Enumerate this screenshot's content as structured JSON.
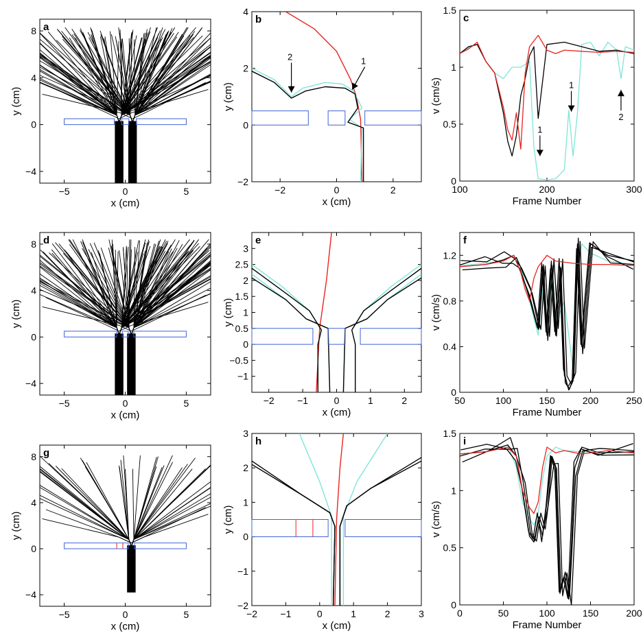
{
  "figure": {
    "panels": [
      {
        "id": "a",
        "kind": "trajectories",
        "xlabel": "x (cm)",
        "ylabel": "y (cm)",
        "xlim": [
          -7,
          7
        ],
        "ylim": [
          -5,
          9
        ],
        "xticks": [
          -5,
          0,
          5
        ],
        "yticks": [
          -4,
          0,
          4,
          8
        ],
        "barriers": [
          [
            -5,
            -0.9
          ],
          [
            -0.3,
            0.3
          ],
          [
            0.9,
            5
          ]
        ],
        "red_marks": [],
        "fans": [
          -0.5,
          0.6
        ],
        "fan_top": 8.2,
        "stream_bottom": -5
      },
      {
        "id": "b",
        "kind": "detail",
        "xlabel": "x (cm)",
        "ylabel": "y (cm)",
        "xlim": [
          -3,
          3
        ],
        "ylim": [
          -2,
          4
        ],
        "xticks": [
          -2,
          0,
          2
        ],
        "yticks": [
          -2,
          0,
          2,
          4
        ],
        "barriers": [
          [
            -3,
            -1
          ],
          [
            -0.3,
            0.3
          ],
          [
            1,
            3
          ]
        ],
        "red_marks": [],
        "annotations": [
          {
            "text": "2",
            "x": -1.6,
            "y": 2.2,
            "tx": -1.6,
            "ty": 1.15
          },
          {
            "text": "1",
            "x": 1.0,
            "y": 2.05,
            "tx": 0.55,
            "ty": 1.25
          }
        ]
      },
      {
        "id": "c",
        "kind": "velocity",
        "xlabel": "Frame Number",
        "ylabel": "v (cm/s)",
        "xlim": [
          100,
          300
        ],
        "ylim": [
          0,
          1.5
        ],
        "xticks": [
          100,
          200,
          300
        ],
        "yticks": [
          0,
          0.5,
          1,
          1.5
        ],
        "annotations": [
          {
            "text": "1",
            "x": 192,
            "y": 0.22,
            "dir": "down"
          },
          {
            "text": "1",
            "x": 228,
            "y": 0.61,
            "dir": "down"
          },
          {
            "text": "2",
            "x": 285,
            "y": 0.8,
            "dir": "up"
          }
        ]
      },
      {
        "id": "d",
        "kind": "trajectories",
        "xlabel": "x (cm)",
        "ylabel": "y (cm)",
        "xlim": [
          -7,
          7
        ],
        "ylim": [
          -5,
          9
        ],
        "xticks": [
          -5,
          0,
          5
        ],
        "yticks": [
          -4,
          0,
          4,
          8
        ],
        "barriers": [
          [
            -5,
            -0.7
          ],
          [
            -0.25,
            0.25
          ],
          [
            0.7,
            5
          ]
        ],
        "red_marks": [],
        "fans": [
          -0.5,
          0.5
        ],
        "fan_top": 8.3,
        "stream_bottom": -5
      },
      {
        "id": "e",
        "kind": "detail",
        "xlabel": "x (cm)",
        "ylabel": "y (cm)",
        "xlim": [
          -2.5,
          2.5
        ],
        "ylim": [
          -1.5,
          3.5
        ],
        "xticks": [
          -2,
          -1,
          0,
          1,
          2
        ],
        "yticks": [
          -1,
          -0.5,
          0,
          0.5,
          1,
          1.5,
          2,
          2.5,
          3
        ],
        "barriers": [
          [
            -2.5,
            -0.7
          ],
          [
            -0.25,
            0.25
          ],
          [
            0.7,
            2.5
          ]
        ],
        "red_marks": []
      },
      {
        "id": "f",
        "kind": "velocity",
        "xlabel": "Frame Number",
        "ylabel": "v (cm/s)",
        "xlim": [
          50,
          250
        ],
        "ylim": [
          0,
          1.4
        ],
        "xticks": [
          50,
          100,
          150,
          200,
          250
        ],
        "yticks": [
          0,
          0.4,
          0.8,
          1.2
        ]
      },
      {
        "id": "g",
        "kind": "trajectories",
        "xlabel": "x (cm)",
        "ylabel": "y (cm)",
        "xlim": [
          -7,
          7
        ],
        "ylim": [
          -5,
          9
        ],
        "xticks": [
          -5,
          0,
          5
        ],
        "yticks": [
          -4,
          0,
          4,
          8
        ],
        "barriers": [
          [
            -5,
            0.25
          ],
          [
            0.75,
            5
          ]
        ],
        "red_marks": [
          -0.7,
          -0.2
        ],
        "fans": [
          0.5
        ],
        "fan_top": 8.0,
        "stream_bottom": -3.8
      },
      {
        "id": "h",
        "kind": "detail",
        "xlabel": "x (cm)",
        "ylabel": "y (cm)",
        "xlim": [
          -2,
          3
        ],
        "ylim": [
          -2,
          3
        ],
        "xticks": [
          -2,
          -1,
          0,
          1,
          2,
          3
        ],
        "yticks": [
          -2,
          -1,
          0,
          1,
          2,
          3
        ],
        "barriers": [
          [
            -2,
            0.25
          ],
          [
            0.75,
            3
          ]
        ],
        "red_marks": [
          -0.7,
          -0.2
        ]
      },
      {
        "id": "i",
        "kind": "velocity",
        "xlabel": "Frame Number",
        "ylabel": "v (cm/s)",
        "xlim": [
          0,
          200
        ],
        "ylim": [
          0,
          1.5
        ],
        "xticks": [
          0,
          50,
          100,
          150,
          200
        ],
        "yticks": [
          0,
          0.5,
          1,
          1.5
        ]
      }
    ]
  },
  "chart_data": [
    {
      "panel": "c",
      "type": "line",
      "title": "",
      "xlabel": "Frame Number",
      "ylabel": "v (cm/s)",
      "xlim": [
        100,
        300
      ],
      "ylim": [
        0,
        1.5
      ],
      "series": [
        {
          "name": "red",
          "color": "#e8231f",
          "x": [
            100,
            110,
            120,
            130,
            140,
            150,
            155,
            160,
            165,
            170,
            175,
            180,
            190,
            200,
            210,
            220,
            240,
            260,
            280,
            300
          ],
          "y": [
            1.12,
            1.16,
            1.22,
            1.05,
            0.95,
            0.65,
            0.45,
            0.36,
            0.6,
            0.28,
            0.95,
            1.18,
            1.28,
            1.15,
            1.12,
            1.15,
            1.14,
            1.13,
            1.14,
            1.13
          ]
        },
        {
          "name": "black",
          "color": "#000000",
          "x": [
            100,
            110,
            120,
            130,
            140,
            150,
            155,
            160,
            165,
            170,
            175,
            180,
            185,
            190,
            200,
            220,
            240,
            260,
            280,
            300
          ],
          "y": [
            1.12,
            1.18,
            1.2,
            1.05,
            0.95,
            0.6,
            0.35,
            0.22,
            0.4,
            0.75,
            0.9,
            1.1,
            1.18,
            0.55,
            1.2,
            1.22,
            1.18,
            1.14,
            1.15,
            1.12
          ]
        },
        {
          "name": "cyan",
          "color": "#7fe5d8",
          "x": [
            100,
            110,
            120,
            130,
            140,
            150,
            160,
            170,
            180,
            185,
            190,
            200,
            210,
            220,
            225,
            230,
            235,
            240,
            250,
            260,
            270,
            280,
            285,
            290,
            300
          ],
          "y": [
            1.12,
            1.17,
            1.2,
            1.05,
            0.95,
            0.9,
            1.0,
            1.0,
            1.05,
            0.3,
            0.02,
            0.01,
            0.02,
            0.1,
            0.62,
            0.22,
            0.6,
            1.2,
            1.22,
            1.1,
            1.22,
            1.15,
            0.9,
            1.18,
            1.15
          ]
        }
      ]
    },
    {
      "panel": "f",
      "type": "line",
      "title": "",
      "xlabel": "Frame Number",
      "ylabel": "v (cm/s)",
      "xlim": [
        50,
        250
      ],
      "ylim": [
        0,
        1.4
      ],
      "series": [
        {
          "name": "red",
          "color": "#e8231f",
          "x": [
            50,
            80,
            100,
            112,
            120,
            125,
            130,
            135,
            140,
            145,
            150,
            160,
            180,
            200,
            220,
            250
          ],
          "y": [
            1.1,
            1.12,
            1.15,
            1.2,
            1.05,
            0.9,
            0.8,
            1.0,
            1.1,
            1.15,
            1.2,
            1.15,
            1.13,
            1.12,
            1.12,
            1.11
          ]
        },
        {
          "name": "black",
          "color": "#000000",
          "x": [
            50,
            80,
            100,
            112,
            120,
            130,
            140,
            145,
            150,
            155,
            160,
            165,
            170,
            175,
            180,
            185,
            190,
            200,
            220,
            250
          ],
          "y": [
            1.1,
            1.12,
            1.16,
            1.2,
            1.05,
            0.85,
            0.55,
            1.1,
            0.5,
            1.15,
            0.5,
            1.1,
            0.15,
            0.02,
            0.1,
            1.3,
            0.4,
            1.3,
            1.2,
            1.15
          ]
        },
        {
          "name": "cyan",
          "color": "#7fe5d8",
          "x": [
            50,
            80,
            100,
            112,
            120,
            130,
            140,
            145,
            150,
            155,
            160,
            170,
            180,
            185,
            190,
            200,
            220,
            250
          ],
          "y": [
            1.11,
            1.13,
            1.15,
            1.2,
            1.1,
            0.8,
            0.5,
            0.9,
            0.55,
            1.0,
            0.6,
            0.8,
            0.2,
            1.1,
            1.3,
            1.22,
            1.15,
            1.12
          ]
        }
      ]
    },
    {
      "panel": "i",
      "type": "line",
      "title": "",
      "xlabel": "Frame Number",
      "ylabel": "v (cm/s)",
      "xlim": [
        0,
        200
      ],
      "ylim": [
        0,
        1.5
      ],
      "series": [
        {
          "name": "red",
          "color": "#e8231f",
          "x": [
            0,
            30,
            55,
            65,
            72,
            80,
            85,
            90,
            95,
            100,
            110,
            120,
            140,
            170,
            200
          ],
          "y": [
            1.32,
            1.34,
            1.38,
            1.3,
            1.0,
            0.85,
            0.8,
            0.9,
            1.2,
            1.38,
            1.33,
            1.35,
            1.32,
            1.35,
            1.33
          ]
        },
        {
          "name": "black",
          "color": "#000000",
          "x": [
            0,
            30,
            55,
            65,
            72,
            80,
            85,
            90,
            95,
            100,
            105,
            110,
            115,
            120,
            125,
            128,
            132,
            140,
            160,
            200
          ],
          "y": [
            1.32,
            1.34,
            1.4,
            1.3,
            1.0,
            0.6,
            0.55,
            0.75,
            0.6,
            0.9,
            1.3,
            1.2,
            0.1,
            0.25,
            0.05,
            0.5,
            1.2,
            1.38,
            1.33,
            1.34
          ]
        },
        {
          "name": "cyan",
          "color": "#7fe5d8",
          "x": [
            0,
            30,
            55,
            65,
            72,
            80,
            85,
            90,
            95,
            100,
            110,
            120,
            140,
            170,
            200
          ],
          "y": [
            1.32,
            1.34,
            1.4,
            1.2,
            0.9,
            0.75,
            0.7,
            0.8,
            1.1,
            1.3,
            1.38,
            1.35,
            1.34,
            1.33,
            1.33
          ]
        }
      ]
    }
  ],
  "colors": {
    "axes": "#000000",
    "barrier": "#3e62d6",
    "red": "#e8231f",
    "cyan": "#7fe5d8",
    "black": "#000000"
  }
}
